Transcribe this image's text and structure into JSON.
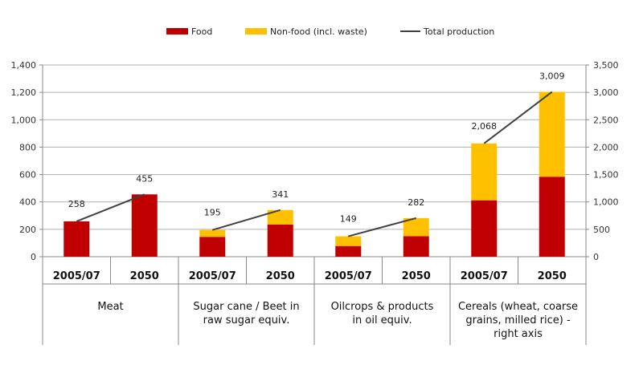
{
  "colors": {
    "food": "#c00000",
    "nonfood": "#ffc000",
    "total": "#404040",
    "grid": "#b0b0b0",
    "axis": "#888888"
  },
  "legend": {
    "food": "Food",
    "nonfood": "Non-food (incl. waste)",
    "total": "Total production"
  },
  "chart_data": {
    "type": "bar",
    "stacked": true,
    "grid": true,
    "legend_position": "top-center",
    "left_axis": {
      "ylim": [
        0,
        1400
      ],
      "ticks": [
        "0",
        "200",
        "400",
        "600",
        "800",
        "1,000",
        "1,200",
        "1,400"
      ]
    },
    "right_axis": {
      "ylim": [
        0,
        3500
      ],
      "ticks": [
        "0",
        "500",
        "1,000",
        "1,500",
        "2,000",
        "2,500",
        "3,000",
        "3,500"
      ]
    },
    "groups": [
      {
        "label": [
          "Meat"
        ],
        "axis": "left",
        "bars": [
          {
            "year": "2005/07",
            "food": 258,
            "nonfood": 0,
            "total": 258,
            "total_label": "258"
          },
          {
            "year": "2050",
            "food": 455,
            "nonfood": 0,
            "total": 455,
            "total_label": "455"
          }
        ]
      },
      {
        "label": [
          "Sugar cane / Beet in",
          "raw sugar equiv."
        ],
        "axis": "left",
        "bars": [
          {
            "year": "2005/07",
            "food": 145,
            "nonfood": 50,
            "total": 195,
            "total_label": "195"
          },
          {
            "year": "2050",
            "food": 235,
            "nonfood": 106,
            "total": 341,
            "total_label": "341"
          }
        ]
      },
      {
        "label": [
          "Oilcrops & products",
          "in oil equiv."
        ],
        "axis": "left",
        "bars": [
          {
            "year": "2005/07",
            "food": 78,
            "nonfood": 71,
            "total": 149,
            "total_label": "149"
          },
          {
            "year": "2050",
            "food": 150,
            "nonfood": 132,
            "total": 282,
            "total_label": "282"
          }
        ]
      },
      {
        "label": [
          "Cereals (wheat, coarse",
          "grains, milled rice) -",
          "right axis"
        ],
        "axis": "right",
        "bars": [
          {
            "year": "2005/07",
            "food": 1030,
            "nonfood": 1038,
            "total": 2068,
            "total_label": "2,068"
          },
          {
            "year": "2050",
            "food": 1460,
            "nonfood": 1549,
            "total": 3009,
            "total_label": "3,009"
          }
        ]
      }
    ]
  }
}
